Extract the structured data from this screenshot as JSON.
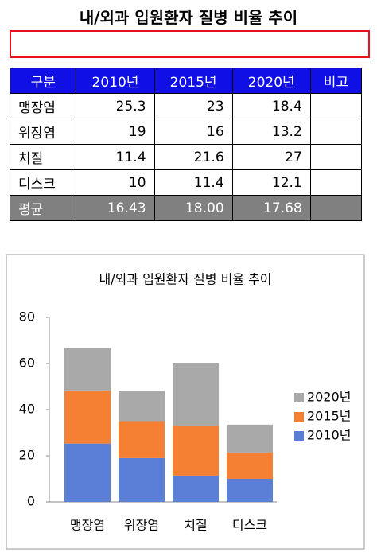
{
  "title": "내/외과 입원환자 질병 비율 추이",
  "table": {
    "header": [
      "구분",
      "2010년",
      "2015년",
      "2020년",
      "비고"
    ],
    "rows": [
      [
        "맹장염",
        "25.3",
        "23",
        "18.4"
      ],
      [
        "위장염",
        "19",
        "16",
        "13.2"
      ],
      [
        "치질",
        "11.4",
        "21.6",
        "27"
      ],
      [
        "디스크",
        "10",
        "11.4",
        "12.1"
      ]
    ],
    "footer": [
      "평균",
      "16.43",
      "18.00",
      "17.68"
    ]
  },
  "chart_data": {
    "type": "stacked_bar",
    "title": "내/외과 입원환자 질병 비율 추이",
    "categories": [
      "맹장염",
      "위장염",
      "치질",
      "디스크"
    ],
    "series": [
      {
        "name": "2010년",
        "color": "#5b7fd6",
        "values": [
          25.3,
          19,
          11.4,
          10
        ]
      },
      {
        "name": "2015년",
        "color": "#f57f32",
        "values": [
          23,
          16,
          21.6,
          11.4
        ]
      },
      {
        "name": "2020년",
        "color": "#a9a9a9",
        "values": [
          18.4,
          13.2,
          27,
          12.1
        ]
      }
    ],
    "ylim": [
      0,
      80
    ],
    "yticks": [
      0,
      20,
      40,
      60,
      80
    ],
    "grid": false,
    "legend": "right"
  }
}
